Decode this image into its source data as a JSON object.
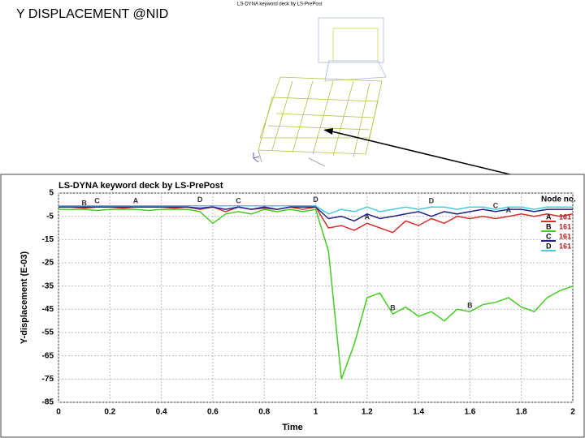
{
  "slide_title": "Y DISPLACEMENT @NID",
  "model_caption": "LS-DYNA keyword deck by LS-PrePost",
  "chart_data": {
    "type": "line",
    "title": "LS-DYNA keyword deck by LS-PrePost",
    "x_label": "Time",
    "y_label": "Y-displacement (E-03)",
    "legend_title": "Node no.",
    "legend": "upper right",
    "grid": true,
    "xlim": [
      0,
      2
    ],
    "xticks": [
      0,
      0.2,
      0.4,
      0.6,
      0.8,
      1,
      1.2,
      1.4,
      1.6,
      1.8,
      2
    ],
    "ylim": [
      -85,
      5
    ],
    "yticks": [
      5,
      -5,
      -15,
      -25,
      -35,
      -45,
      -55,
      -65,
      -75,
      -85
    ],
    "x": [
      0,
      0.05,
      0.1,
      0.15,
      0.2,
      0.25,
      0.3,
      0.35,
      0.4,
      0.45,
      0.5,
      0.55,
      0.6,
      0.65,
      0.7,
      0.75,
      0.8,
      0.85,
      0.9,
      0.95,
      1,
      1.05,
      1.1,
      1.15,
      1.2,
      1.25,
      1.3,
      1.35,
      1.4,
      1.45,
      1.5,
      1.55,
      1.6,
      1.65,
      1.7,
      1.75,
      1.8,
      1.85,
      1.9,
      1.95,
      2
    ],
    "series": [
      {
        "name": "A",
        "node": "161",
        "color": "#d03030",
        "values": [
          -1,
          -1,
          -1.5,
          -1,
          -1,
          -1.5,
          -1,
          -1,
          -1,
          -1.5,
          -1,
          -2,
          -1,
          -3,
          -1,
          -2,
          -1.5,
          -2,
          -1,
          -2,
          -1,
          -10,
          -9,
          -11,
          -8,
          -10,
          -12,
          -7,
          -9,
          -6,
          -8,
          -5,
          -6,
          -5,
          -6,
          -5,
          -4,
          -5,
          -4,
          -5,
          -4
        ]
      },
      {
        "name": "B",
        "node": "161",
        "color": "#44cc22",
        "values": [
          -2,
          -2,
          -2,
          -2.5,
          -2,
          -2,
          -2,
          -2.5,
          -2,
          -2,
          -2,
          -3,
          -8,
          -4,
          -3,
          -4,
          -2,
          -3,
          -2,
          -3,
          -2,
          -20,
          -75,
          -60,
          -40,
          -38,
          -47,
          -44,
          -48,
          -46,
          -50,
          -45,
          -46,
          -43,
          -42,
          -40,
          -44,
          -46,
          -40,
          -37,
          -35
        ]
      },
      {
        "name": "C",
        "node": "161",
        "color": "#222288",
        "values": [
          -1,
          -1,
          -1,
          -1,
          -1,
          -1,
          -1,
          -1,
          -1,
          -1,
          -1,
          -1.5,
          -1,
          -2,
          -1,
          -2,
          -1,
          -2,
          -1,
          -1,
          -1,
          -6,
          -5,
          -7,
          -4,
          -6,
          -5,
          -4,
          -3,
          -5,
          -3,
          -4,
          -3,
          -2,
          -3,
          -2,
          -2,
          -3,
          -2,
          -2,
          -2
        ]
      },
      {
        "name": "D",
        "node": "161",
        "color": "#44ccdd",
        "values": [
          -0.5,
          -0.5,
          -0.5,
          -0.5,
          -0.5,
          -0.5,
          -0.5,
          -0.5,
          -0.5,
          -0.5,
          -0.5,
          -0.5,
          -0.5,
          -0.5,
          -0.5,
          -0.5,
          -0.5,
          -0.5,
          -0.5,
          -0.5,
          -0.5,
          -4,
          -2,
          -3,
          -1,
          -3,
          -2,
          -1,
          -2,
          -1,
          -1,
          -2,
          -1,
          -1,
          -2,
          -1,
          -1,
          -2,
          -1,
          -1,
          -1
        ]
      }
    ]
  }
}
